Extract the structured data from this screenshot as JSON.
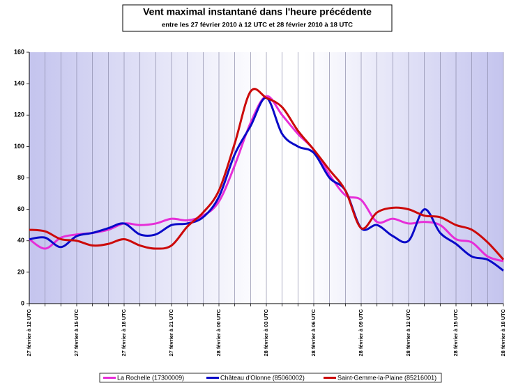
{
  "chart_data": {
    "type": "line",
    "title": "Vent maximal instantané dans l'heure précédente",
    "subtitle": "entre les 27 février 2010 à 12 UTC et 28 février 2010 à 18 UTC",
    "categories": [
      "27 février à 12 UTC",
      null,
      null,
      "27 février à 15 UTC",
      null,
      null,
      "27 février à 18 UTC",
      null,
      null,
      "27 février à 21 UTC",
      null,
      null,
      "28 février à 00 UTC",
      null,
      null,
      "28 février à 03 UTC",
      null,
      null,
      "28 février à 06 UTC",
      null,
      null,
      "28 février à 09 UTC",
      null,
      null,
      "28 février à 12 UTC",
      null,
      null,
      "28 février à 15 UTC",
      null,
      null,
      "28 février à 18 UTC"
    ],
    "series": [
      {
        "name": "La Rochelle (17300009)",
        "color": "#e62ed8",
        "values": [
          41,
          35,
          42,
          44,
          45,
          47,
          51,
          50,
          51,
          54,
          53,
          56,
          65,
          88,
          115,
          132,
          120,
          108,
          98,
          82,
          69,
          66,
          52,
          54,
          51,
          52,
          50,
          41,
          39,
          30,
          27
        ]
      },
      {
        "name": "Château d'Olonne (85060002)",
        "color": "#0a0ac8",
        "values": [
          41,
          42,
          36,
          43,
          45,
          48,
          51,
          44,
          44,
          50,
          51,
          55,
          68,
          95,
          113,
          131,
          108,
          100,
          96,
          80,
          72,
          48,
          50,
          43,
          40,
          60,
          45,
          38,
          30,
          28,
          21
        ]
      },
      {
        "name": "Saint-Gemme-la-Plaine (85216001)",
        "color": "#cc0a0a",
        "values": [
          47,
          46,
          41,
          40,
          37,
          38,
          41,
          37,
          35,
          37,
          49,
          58,
          72,
          102,
          135,
          131,
          125,
          110,
          98,
          85,
          72,
          48,
          58,
          61,
          60,
          56,
          55,
          50,
          47,
          39,
          28
        ]
      }
    ],
    "ylim": [
      0,
      160
    ],
    "yticks": [
      0,
      20,
      40,
      60,
      80,
      100,
      120,
      140,
      160
    ]
  }
}
